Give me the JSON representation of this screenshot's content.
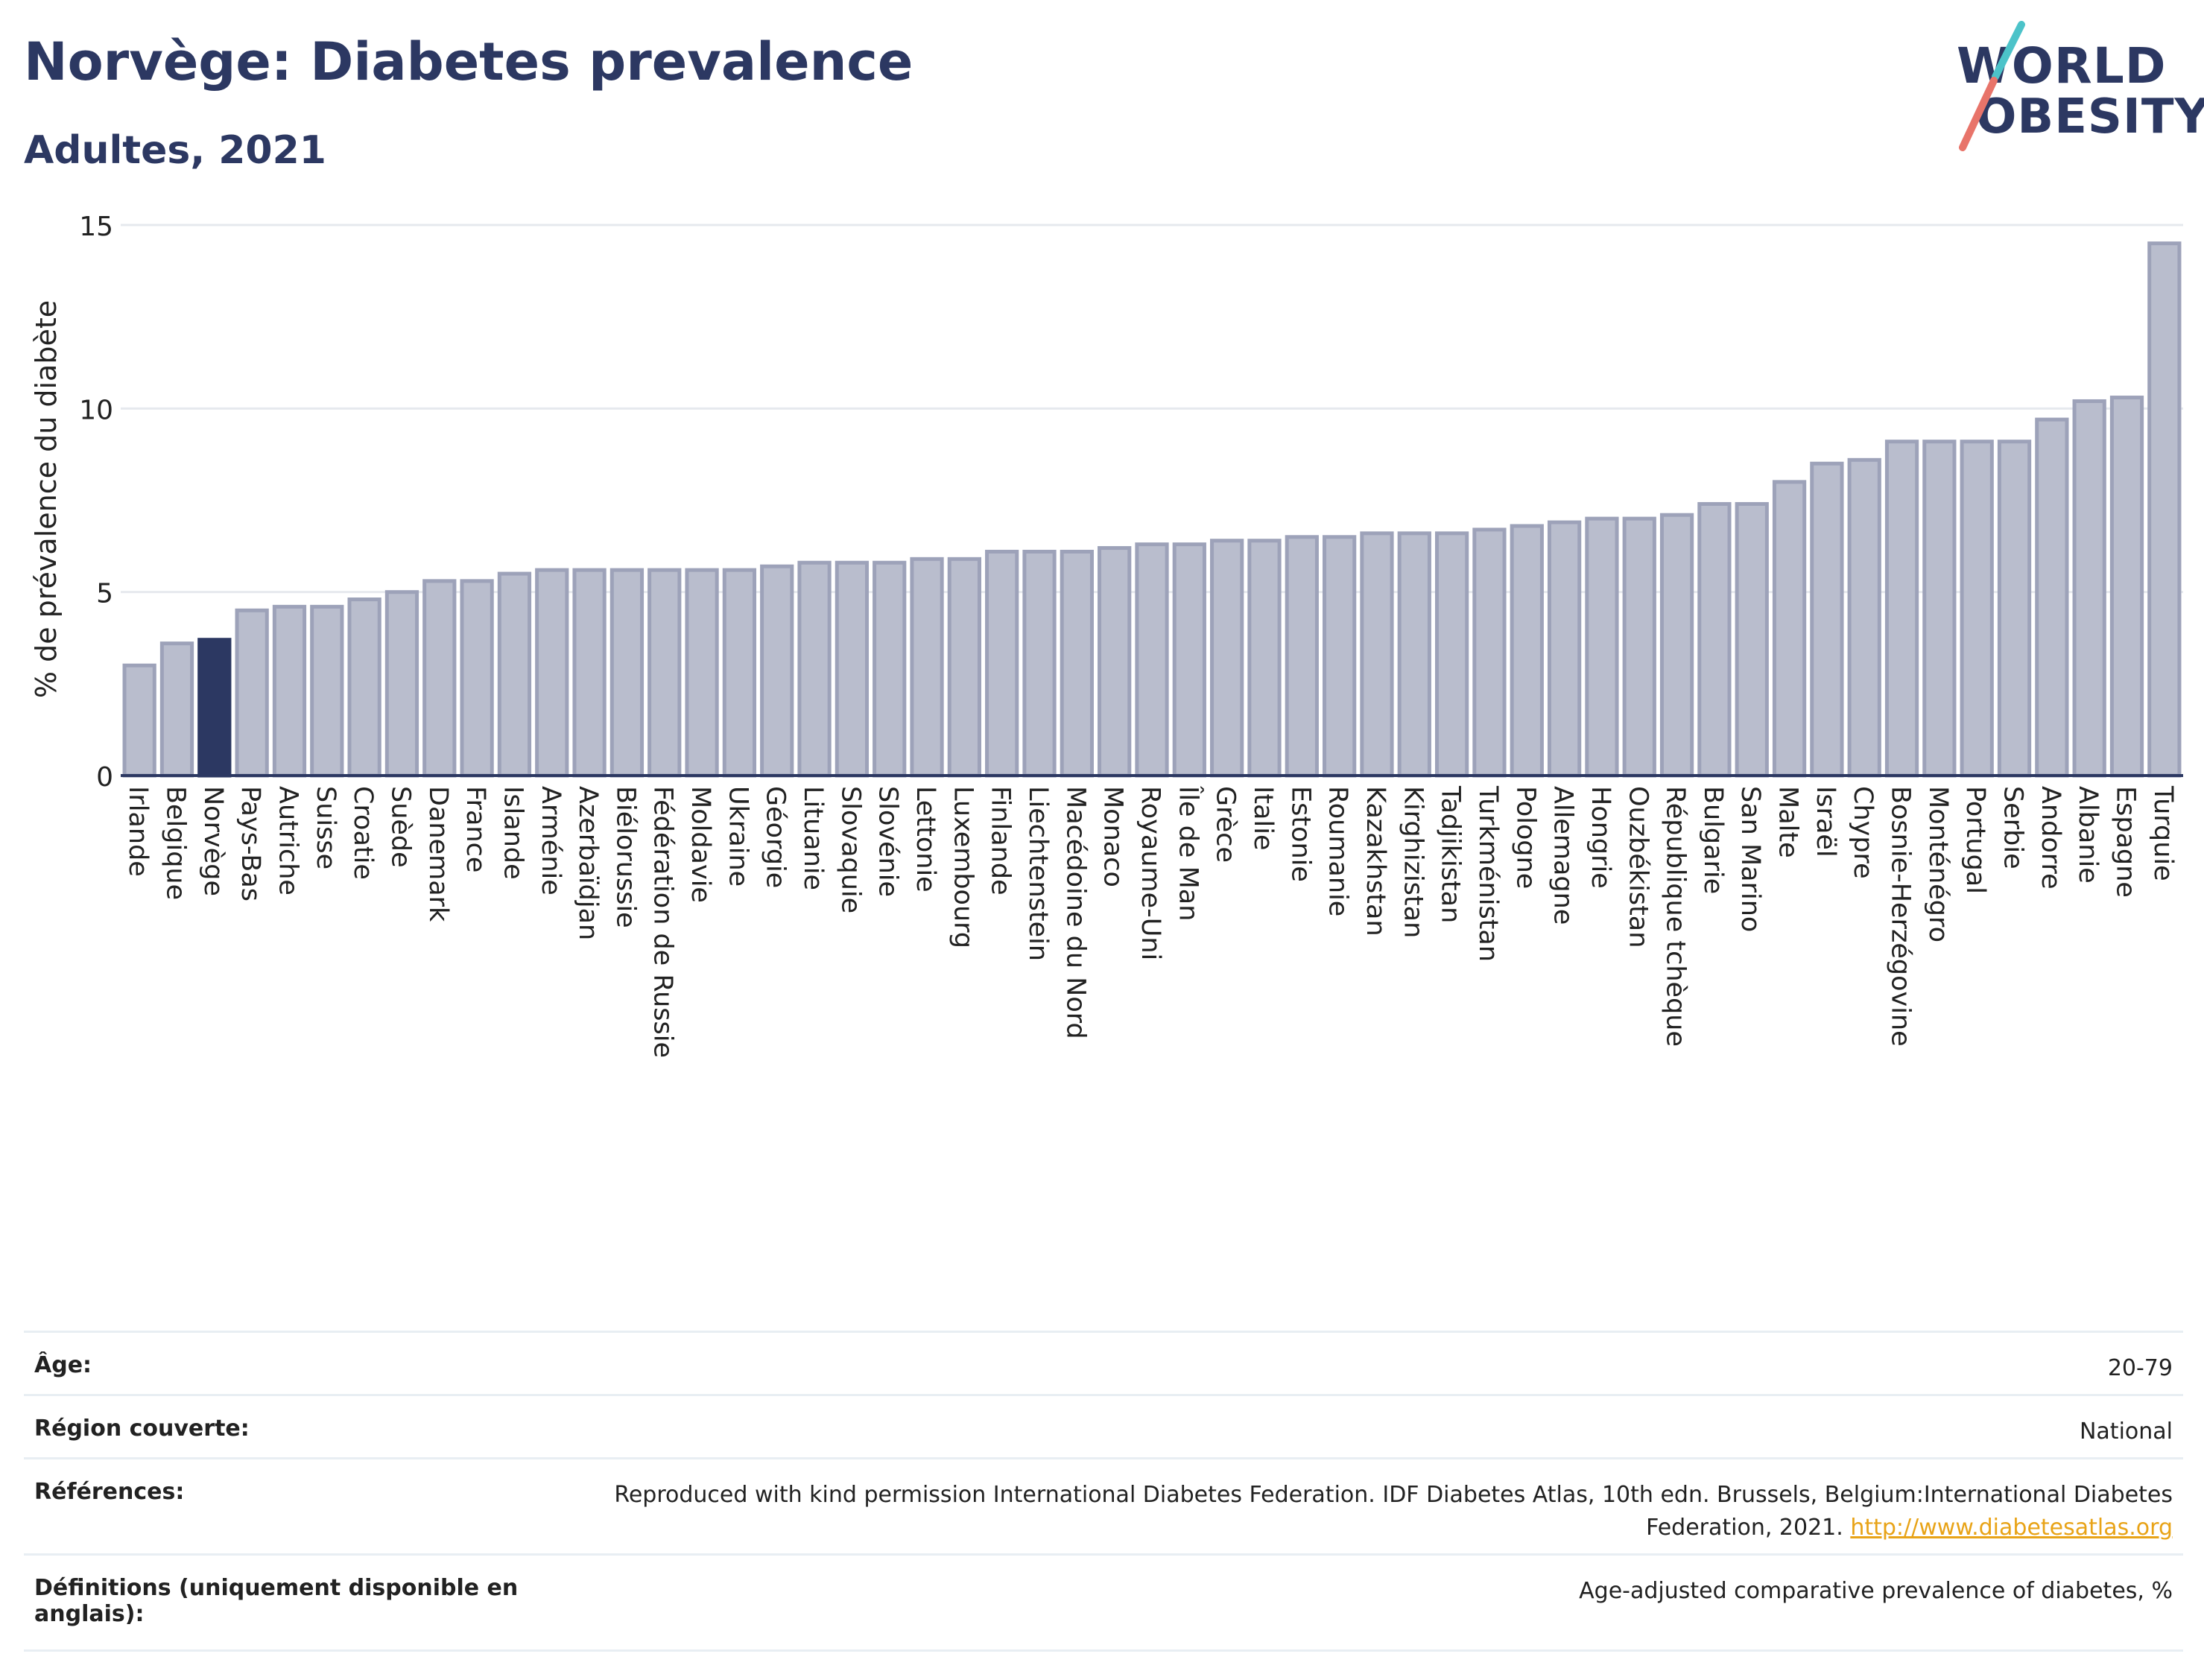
{
  "header": {
    "title": "Norvège: Diabetes prevalence",
    "subtitle": "Adultes, 2021"
  },
  "logo": {
    "line1": "WORLD",
    "line2": "OBESITY",
    "slash_colors": [
      "#4cc3c9",
      "#e8746a"
    ]
  },
  "colors": {
    "bar": "#b9bdcd",
    "bar_stroke": "#9da2b9",
    "highlight": "#2c3862",
    "text": "#2c3862",
    "link": "#e8a317"
  },
  "chart_data": {
    "type": "bar",
    "title": "Norvège: Diabetes prevalence",
    "subtitle": "Adultes, 2021",
    "xlabel": "",
    "ylabel": "% de prévalence du diabète",
    "ylim": [
      0,
      15
    ],
    "yticks": [
      0,
      5,
      10,
      15
    ],
    "grid": true,
    "highlight": "Norvège",
    "categories": [
      "Irlande",
      "Belgique",
      "Norvège",
      "Pays-Bas",
      "Autriche",
      "Suisse",
      "Croatie",
      "Suède",
      "Danemark",
      "France",
      "Islande",
      "Arménie",
      "Azerbaïdjan",
      "Biélorussie",
      "Fédération de Russie",
      "Moldavie",
      "Ukraine",
      "Géorgie",
      "Lituanie",
      "Slovaquie",
      "Slovénie",
      "Lettonie",
      "Luxembourg",
      "Finlande",
      "Liechtenstein",
      "Macédoine du Nord",
      "Monaco",
      "Royaume-Uni",
      "Île de Man",
      "Grèce",
      "Italie",
      "Estonie",
      "Roumanie",
      "Kazakhstan",
      "Kirghizistan",
      "Tadjikistan",
      "Turkménistan",
      "Pologne",
      "Allemagne",
      "Hongrie",
      "Ouzbékistan",
      "République tchèque",
      "Bulgarie",
      "San Marino",
      "Malte",
      "Israël",
      "Chypre",
      "Bosnie-Herzégovine",
      "Monténégro",
      "Portugal",
      "Serbie",
      "Andorre",
      "Albanie",
      "Espagne",
      "Turquie"
    ],
    "values": [
      3.0,
      3.6,
      3.7,
      4.5,
      4.6,
      4.6,
      4.8,
      5.0,
      5.3,
      5.3,
      5.5,
      5.6,
      5.6,
      5.6,
      5.6,
      5.6,
      5.6,
      5.7,
      5.8,
      5.8,
      5.8,
      5.9,
      5.9,
      6.1,
      6.1,
      6.1,
      6.2,
      6.3,
      6.3,
      6.4,
      6.4,
      6.5,
      6.5,
      6.6,
      6.6,
      6.6,
      6.7,
      6.8,
      6.9,
      7.0,
      7.0,
      7.1,
      7.4,
      7.4,
      8.0,
      8.5,
      8.6,
      9.1,
      9.1,
      9.1,
      9.1,
      9.7,
      10.2,
      10.3,
      14.5
    ]
  },
  "details": {
    "age_label": "Âge:",
    "age_value": "20-79",
    "region_label": "Région couverte:",
    "region_value": "National",
    "refs_label": "Références:",
    "refs_text": "Reproduced with kind permission International Diabetes Federation.  IDF Diabetes Atlas, 10th edn. Brussels, Belgium:International Diabetes Federation, 2021.",
    "refs_link": "http://www.diabetesatlas.org",
    "defs_label": "Définitions (uniquement disponible en anglais):",
    "defs_value": "Age-adjusted comparative prevalence of diabetes, %"
  }
}
